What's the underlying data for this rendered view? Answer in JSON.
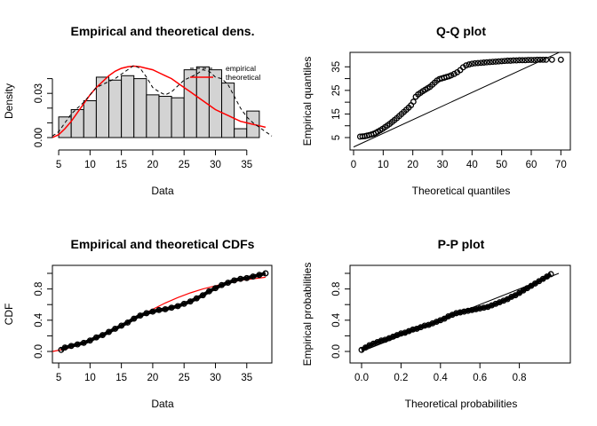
{
  "chart_data": [
    {
      "type": "histogram",
      "title": "Empirical and theoretical dens.",
      "xlabel": "Data",
      "ylabel": "Density",
      "xlim": [
        4,
        39
      ],
      "ylim": [
        0,
        0.05
      ],
      "xticks": [
        5,
        10,
        15,
        20,
        25,
        30,
        35
      ],
      "yticks": [
        0.0,
        0.03
      ],
      "ytick_labels": [
        "0.00",
        "0.03"
      ],
      "ymid_ticks": [
        0.01,
        0.02,
        0.04
      ],
      "bins": [
        {
          "x0": 5,
          "x1": 7,
          "density": 0.014
        },
        {
          "x0": 7,
          "x1": 9,
          "density": 0.019
        },
        {
          "x0": 9,
          "x1": 11,
          "density": 0.025
        },
        {
          "x0": 11,
          "x1": 13,
          "density": 0.041
        },
        {
          "x0": 13,
          "x1": 15,
          "density": 0.039
        },
        {
          "x0": 15,
          "x1": 17,
          "density": 0.042
        },
        {
          "x0": 17,
          "x1": 19,
          "density": 0.04
        },
        {
          "x0": 19,
          "x1": 21,
          "density": 0.029
        },
        {
          "x0": 21,
          "x1": 23,
          "density": 0.028
        },
        {
          "x0": 23,
          "x1": 25,
          "density": 0.027
        },
        {
          "x0": 25,
          "x1": 27,
          "density": 0.046
        },
        {
          "x0": 27,
          "x1": 29,
          "density": 0.048
        },
        {
          "x0": 29,
          "x1": 31,
          "density": 0.046
        },
        {
          "x0": 31,
          "x1": 33,
          "density": 0.037
        },
        {
          "x0": 33,
          "x1": 35,
          "density": 0.006
        },
        {
          "x0": 35,
          "x1": 37,
          "density": 0.018
        }
      ],
      "theoretical_density": {
        "x": [
          4,
          5,
          6,
          7,
          8,
          9,
          10,
          11,
          12,
          13,
          14,
          15,
          16,
          17,
          18,
          19,
          20,
          21,
          22,
          23,
          24,
          25,
          26,
          27,
          28,
          29,
          30,
          31,
          32,
          33,
          34,
          35,
          36,
          37,
          38
        ],
        "y": [
          0.0,
          0.002,
          0.006,
          0.011,
          0.017,
          0.023,
          0.029,
          0.034,
          0.038,
          0.042,
          0.045,
          0.047,
          0.048,
          0.0485,
          0.048,
          0.047,
          0.046,
          0.044,
          0.042,
          0.04,
          0.037,
          0.034,
          0.031,
          0.028,
          0.025,
          0.022,
          0.019,
          0.017,
          0.015,
          0.013,
          0.011,
          0.01,
          0.009,
          0.008,
          0.007
        ]
      },
      "empirical_density": {
        "x": [
          4,
          5,
          6,
          7,
          8,
          9,
          10,
          11,
          12,
          13,
          14,
          15,
          16,
          17,
          18,
          19,
          20,
          21,
          22,
          23,
          24,
          25,
          26,
          27,
          28,
          29,
          30,
          31,
          32,
          33,
          34,
          35,
          36,
          37,
          38,
          39
        ],
        "y": [
          0.001,
          0.004,
          0.01,
          0.016,
          0.02,
          0.024,
          0.029,
          0.034,
          0.036,
          0.038,
          0.04,
          0.043,
          0.046,
          0.049,
          0.047,
          0.041,
          0.034,
          0.031,
          0.029,
          0.031,
          0.035,
          0.039,
          0.041,
          0.043,
          0.046,
          0.045,
          0.041,
          0.04,
          0.036,
          0.028,
          0.02,
          0.014,
          0.01,
          0.007,
          0.004,
          0.001
        ]
      },
      "legend": {
        "position": "top-right",
        "entries": [
          "empirical",
          "theoretical"
        ]
      }
    },
    {
      "type": "scatter",
      "title": "Q-Q plot",
      "xlabel": "Theoretical quantiles",
      "ylabel": "Empirical quantiles",
      "xlim": [
        0,
        72
      ],
      "ylim": [
        5,
        40
      ],
      "xticks": [
        0,
        10,
        20,
        30,
        40,
        50,
        60,
        70
      ],
      "yticks": [
        5,
        15,
        25,
        35
      ],
      "ymid_ticks": [
        10,
        20,
        30
      ],
      "points": {
        "x": [
          2.2,
          3.0,
          3.8,
          4.5,
          5.2,
          6.0,
          6.8,
          7.5,
          8.2,
          9.0,
          9.8,
          10.6,
          11.4,
          12.2,
          13.0,
          13.8,
          14.6,
          15.4,
          16.2,
          17.0,
          17.8,
          18.6,
          19.4,
          20.2,
          21.0,
          21.8,
          22.6,
          23.4,
          24.2,
          25.0,
          25.8,
          26.6,
          27.4,
          28.2,
          29.0,
          29.8,
          30.6,
          31.4,
          32.2,
          33.0,
          34.0,
          35.0,
          36.0,
          37.0,
          38.0,
          39.0,
          40.0,
          41.0,
          42.0,
          43.0,
          44.0,
          45.0,
          46.0,
          47.0,
          48.0,
          49.0,
          50.0,
          51.0,
          52.0,
          53.0,
          54.0,
          55.0,
          56.0,
          57.0,
          58.0,
          59.0,
          60.0,
          61.0,
          62.0,
          63.0,
          64.0,
          65.0,
          67.0,
          70.0
        ],
        "y": [
          5.4,
          5.5,
          5.6,
          5.8,
          6.0,
          6.3,
          6.6,
          7.0,
          7.5,
          8.1,
          8.7,
          9.4,
          10.1,
          10.8,
          11.6,
          12.4,
          13.2,
          14.1,
          15.0,
          15.9,
          16.8,
          17.7,
          18.7,
          20.2,
          22.3,
          23.3,
          24.0,
          24.7,
          25.3,
          25.9,
          26.5,
          27.4,
          28.3,
          29.2,
          29.8,
          30.1,
          30.4,
          30.7,
          31.0,
          31.4,
          32.0,
          32.7,
          33.6,
          34.8,
          35.6,
          36.0,
          36.3,
          36.5,
          36.6,
          36.7,
          36.8,
          36.9,
          37.0,
          37.1,
          37.2,
          37.3,
          37.4,
          37.5,
          37.6,
          37.6,
          37.7,
          37.7,
          37.8,
          37.8,
          37.8,
          37.9,
          37.9,
          37.9,
          38.0,
          38.0,
          38.0,
          38.0,
          38.0,
          38.0
        ]
      },
      "reference_line": {
        "x": [
          0,
          72
        ],
        "y": [
          1.0,
          42.6
        ]
      }
    },
    {
      "type": "line",
      "title": "Empirical and theoretical CDFs",
      "xlabel": "Data",
      "ylabel": "CDF",
      "xlim": [
        4,
        39
      ],
      "ylim": [
        0,
        1
      ],
      "xticks": [
        5,
        10,
        15,
        20,
        25,
        30,
        35
      ],
      "yticks": [
        0.0,
        0.4,
        0.8
      ],
      "ytick_labels": [
        "0.0",
        "0.4",
        "0.8"
      ],
      "ymid_ticks": [
        0.2,
        0.6,
        1.0
      ],
      "empirical_cdf": {
        "x": [
          5.4,
          6.0,
          7.0,
          8.0,
          9.0,
          10.0,
          11.0,
          12.0,
          13.0,
          14.0,
          15.0,
          16.0,
          17.0,
          18.0,
          19.0,
          20.0,
          21.0,
          22.0,
          23.0,
          24.0,
          25.0,
          26.0,
          27.0,
          28.0,
          29.0,
          30.0,
          31.0,
          32.0,
          33.0,
          34.0,
          35.0,
          36.0,
          37.0,
          38.0
        ],
        "y": [
          0.02,
          0.05,
          0.07,
          0.09,
          0.11,
          0.14,
          0.18,
          0.21,
          0.25,
          0.29,
          0.33,
          0.37,
          0.42,
          0.46,
          0.49,
          0.51,
          0.53,
          0.54,
          0.56,
          0.58,
          0.61,
          0.64,
          0.68,
          0.72,
          0.77,
          0.81,
          0.85,
          0.88,
          0.91,
          0.93,
          0.94,
          0.96,
          0.98,
          1.0
        ]
      },
      "theoretical_cdf": {
        "x": [
          4,
          6,
          8,
          10,
          12,
          14,
          16,
          18,
          20,
          22,
          24,
          26,
          28,
          30,
          32,
          34,
          36,
          38
        ],
        "y": [
          0.0,
          0.03,
          0.08,
          0.14,
          0.21,
          0.29,
          0.37,
          0.46,
          0.54,
          0.62,
          0.69,
          0.75,
          0.8,
          0.84,
          0.88,
          0.91,
          0.93,
          0.95
        ]
      }
    },
    {
      "type": "scatter",
      "title": "P-P plot",
      "xlabel": "Theoretical probabilities",
      "ylabel": "Empirical probabilities",
      "xlim": [
        0,
        1
      ],
      "ylim": [
        0,
        1
      ],
      "xticks": [
        0.0,
        0.2,
        0.4,
        0.6,
        0.8
      ],
      "xtick_labels": [
        "0.0",
        "0.2",
        "0.4",
        "0.6",
        "0.8"
      ],
      "yticks": [
        0.0,
        0.4,
        0.8
      ],
      "ytick_labels": [
        "0.0",
        "0.4",
        "0.8"
      ],
      "ymid_ticks": [
        0.2,
        0.6,
        1.0
      ],
      "points": {
        "x": [
          0.0,
          0.02,
          0.04,
          0.06,
          0.08,
          0.1,
          0.12,
          0.14,
          0.16,
          0.18,
          0.2,
          0.22,
          0.24,
          0.26,
          0.28,
          0.3,
          0.32,
          0.34,
          0.36,
          0.38,
          0.4,
          0.42,
          0.44,
          0.46,
          0.48,
          0.5,
          0.52,
          0.54,
          0.56,
          0.58,
          0.6,
          0.62,
          0.64,
          0.66,
          0.68,
          0.7,
          0.72,
          0.74,
          0.76,
          0.78,
          0.8,
          0.82,
          0.84,
          0.86,
          0.88,
          0.9,
          0.92,
          0.94,
          0.96
        ],
        "y": [
          0.02,
          0.05,
          0.08,
          0.1,
          0.12,
          0.14,
          0.15,
          0.17,
          0.19,
          0.21,
          0.23,
          0.24,
          0.26,
          0.28,
          0.29,
          0.31,
          0.33,
          0.34,
          0.36,
          0.38,
          0.4,
          0.42,
          0.45,
          0.47,
          0.49,
          0.5,
          0.51,
          0.52,
          0.53,
          0.54,
          0.55,
          0.56,
          0.57,
          0.59,
          0.61,
          0.63,
          0.65,
          0.67,
          0.7,
          0.72,
          0.75,
          0.78,
          0.81,
          0.84,
          0.87,
          0.9,
          0.93,
          0.96,
          0.99
        ]
      },
      "reference_line": {
        "x": [
          0,
          1
        ],
        "y": [
          0,
          1
        ]
      }
    }
  ]
}
